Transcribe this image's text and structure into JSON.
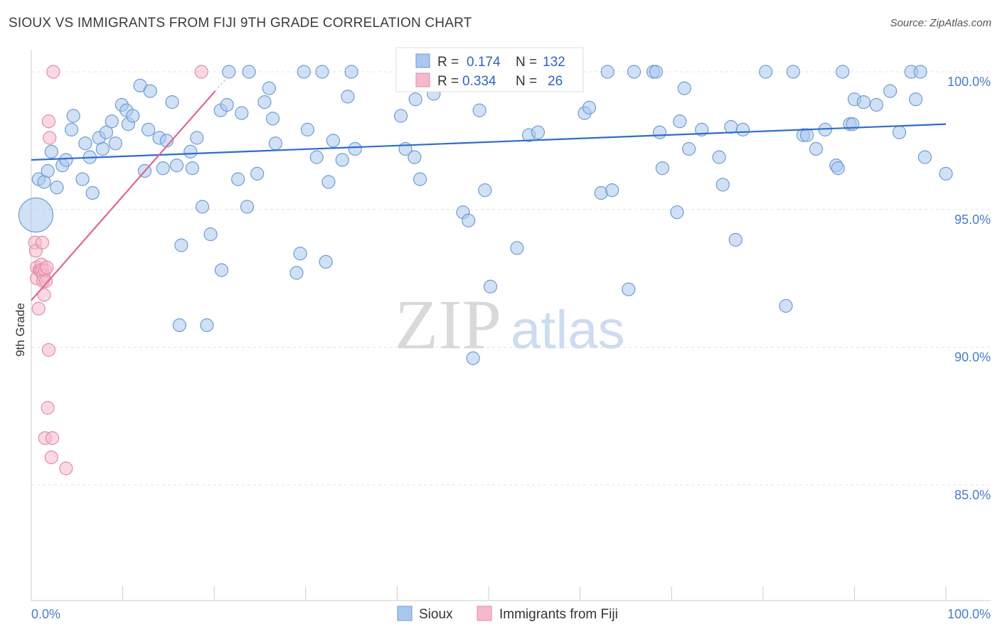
{
  "title": "SIOUX VS IMMIGRANTS FROM FIJI 9TH GRADE CORRELATION CHART",
  "source": "Source: ZipAtlas.com",
  "watermark": {
    "zip": "ZIP",
    "atlas": "atlas"
  },
  "colors": {
    "sioux_fill": "#a9c8ee",
    "sioux_stroke": "#6f9ad6",
    "sioux_line": "#2f6cc8",
    "fiji_fill": "#f6b9cb",
    "fiji_stroke": "#e58aa7",
    "fiji_line": "#e0668f",
    "tick_text": "#4a7cc9",
    "grid": "#dfe3ea"
  },
  "legend": {
    "rows": [
      {
        "r_label": "R =",
        "r_value": "0.174",
        "n_label": "N =",
        "n_value": "132"
      },
      {
        "r_label": "R =",
        "r_value": "0.334",
        "n_label": "N =",
        "n_value": "26"
      }
    ]
  },
  "chart_data": {
    "type": "scatter",
    "title": "SIOUX VS IMMIGRANTS FROM FIJI 9TH GRADE CORRELATION CHART",
    "xlabel": "",
    "ylabel": "9th Grade",
    "xlim": [
      0,
      100
    ],
    "ylim": [
      80.8,
      100.8
    ],
    "x_tick_labels": [
      "0.0%",
      "100.0%"
    ],
    "y_ticks": [
      85,
      90,
      95,
      100
    ],
    "y_tick_labels": [
      "85.0%",
      "90.0%",
      "95.0%",
      "100.0%"
    ],
    "grid": true,
    "legend_position": "bottom",
    "series": [
      {
        "name": "Sioux",
        "trend": {
          "x": [
            0,
            100
          ],
          "y": [
            96.8,
            98.1
          ]
        },
        "points": [
          [
            0.5,
            94.8,
            24
          ],
          [
            0.8,
            96.1,
            9
          ],
          [
            1.4,
            96.0,
            9
          ],
          [
            1.8,
            96.4,
            9
          ],
          [
            2.2,
            97.1,
            9
          ],
          [
            2.8,
            95.8,
            9
          ],
          [
            3.4,
            96.6,
            9
          ],
          [
            3.8,
            96.8,
            9
          ],
          [
            4.4,
            97.9,
            9
          ],
          [
            4.6,
            98.4,
            9
          ],
          [
            5.6,
            96.1,
            9
          ],
          [
            5.9,
            97.4,
            9
          ],
          [
            6.4,
            96.9,
            9
          ],
          [
            6.7,
            95.6,
            9
          ],
          [
            7.4,
            97.6,
            9
          ],
          [
            7.8,
            97.2,
            9
          ],
          [
            8.2,
            97.8,
            9
          ],
          [
            8.8,
            98.2,
            9
          ],
          [
            9.2,
            97.4,
            9
          ],
          [
            9.9,
            98.8,
            9
          ],
          [
            10.4,
            98.6,
            9
          ],
          [
            10.6,
            98.1,
            9
          ],
          [
            11.1,
            98.4,
            9
          ],
          [
            11.9,
            99.5,
            9
          ],
          [
            12.4,
            96.4,
            9
          ],
          [
            12.8,
            97.9,
            9
          ],
          [
            13.0,
            99.3,
            9
          ],
          [
            14.0,
            97.6,
            9
          ],
          [
            14.4,
            96.5,
            9
          ],
          [
            14.8,
            97.5,
            9
          ],
          [
            15.4,
            98.9,
            9
          ],
          [
            15.9,
            96.6,
            9
          ],
          [
            16.4,
            93.7,
            9
          ],
          [
            16.2,
            90.8,
            9
          ],
          [
            17.4,
            97.1,
            9
          ],
          [
            17.6,
            96.5,
            9
          ],
          [
            18.1,
            97.6,
            9
          ],
          [
            18.7,
            95.1,
            9
          ],
          [
            19.2,
            90.8,
            9
          ],
          [
            19.6,
            94.1,
            9
          ],
          [
            20.7,
            98.6,
            9
          ],
          [
            20.8,
            92.8,
            9
          ],
          [
            21.4,
            98.8,
            9
          ],
          [
            21.6,
            100.0,
            9
          ],
          [
            22.6,
            96.1,
            9
          ],
          [
            23.0,
            98.5,
            9
          ],
          [
            23.6,
            95.1,
            9
          ],
          [
            23.8,
            100.0,
            9
          ],
          [
            24.7,
            96.3,
            9
          ],
          [
            25.5,
            98.9,
            9
          ],
          [
            26.0,
            99.4,
            9
          ],
          [
            26.4,
            98.3,
            9
          ],
          [
            26.7,
            97.4,
            9
          ],
          [
            29.0,
            92.7,
            9
          ],
          [
            29.4,
            93.4,
            9
          ],
          [
            29.8,
            100.0,
            9
          ],
          [
            30.2,
            97.9,
            9
          ],
          [
            31.2,
            96.9,
            9
          ],
          [
            31.8,
            100.0,
            9
          ],
          [
            32.2,
            93.1,
            9
          ],
          [
            32.5,
            96.0,
            9
          ],
          [
            33.0,
            97.5,
            9
          ],
          [
            34.0,
            96.8,
            9
          ],
          [
            34.6,
            99.1,
            9
          ],
          [
            35.0,
            100.0,
            9
          ],
          [
            35.4,
            97.2,
            9
          ],
          [
            40.4,
            98.4,
            9
          ],
          [
            40.9,
            97.2,
            9
          ],
          [
            41.9,
            96.9,
            9
          ],
          [
            42.5,
            96.1,
            9
          ],
          [
            43.9,
            100.0,
            9
          ],
          [
            47.2,
            94.9,
            9
          ],
          [
            47.8,
            94.6,
            9
          ],
          [
            48.3,
            89.6,
            9
          ],
          [
            49.0,
            98.6,
            9
          ],
          [
            49.6,
            95.7,
            9
          ],
          [
            50.2,
            92.2,
            9
          ],
          [
            51.5,
            100.0,
            9
          ],
          [
            53.1,
            93.6,
            9
          ],
          [
            54.4,
            97.7,
            9
          ],
          [
            55.4,
            97.8,
            9
          ],
          [
            56.6,
            100.0,
            9
          ],
          [
            60.5,
            98.5,
            9
          ],
          [
            61.0,
            98.7,
            9
          ],
          [
            62.3,
            95.6,
            9
          ],
          [
            63.0,
            100.0,
            9
          ],
          [
            63.5,
            95.7,
            9
          ],
          [
            65.9,
            100.0,
            9
          ],
          [
            65.3,
            92.1,
            9
          ],
          [
            68.0,
            100.0,
            9
          ],
          [
            68.3,
            100.0,
            9
          ],
          [
            68.7,
            97.8,
            9
          ],
          [
            69.0,
            96.5,
            9
          ],
          [
            70.6,
            94.9,
            9
          ],
          [
            70.9,
            98.2,
            9
          ],
          [
            71.4,
            99.4,
            9
          ],
          [
            71.9,
            97.2,
            9
          ],
          [
            73.3,
            97.9,
            9
          ],
          [
            75.2,
            96.9,
            9
          ],
          [
            75.6,
            95.9,
            9
          ],
          [
            76.5,
            98.0,
            9
          ],
          [
            77.0,
            93.9,
            9
          ],
          [
            77.8,
            97.9,
            9
          ],
          [
            80.3,
            100.0,
            9
          ],
          [
            82.5,
            91.5,
            9
          ],
          [
            83.3,
            100.0,
            9
          ],
          [
            84.4,
            97.7,
            9
          ],
          [
            84.8,
            97.7,
            9
          ],
          [
            85.8,
            97.2,
            9
          ],
          [
            86.8,
            97.9,
            9
          ],
          [
            88.0,
            96.6,
            9
          ],
          [
            88.2,
            96.5,
            9
          ],
          [
            88.7,
            100.0,
            9
          ],
          [
            89.5,
            98.1,
            9
          ],
          [
            89.8,
            98.1,
            9
          ],
          [
            90.0,
            99.0,
            9
          ],
          [
            91.0,
            98.9,
            9
          ],
          [
            92.4,
            98.8,
            9
          ],
          [
            93.9,
            99.3,
            9
          ],
          [
            94.9,
            97.8,
            9
          ],
          [
            96.2,
            100.0,
            9
          ],
          [
            96.7,
            99.0,
            9
          ],
          [
            97.2,
            100.0,
            9
          ],
          [
            97.7,
            96.9,
            9
          ],
          [
            100.0,
            96.3,
            9
          ],
          [
            42.0,
            99.0,
            9
          ],
          [
            44.0,
            99.2,
            9
          ],
          [
            50.8,
            100.0,
            9
          ]
        ]
      },
      {
        "name": "Immigrants from Fiji",
        "trend": {
          "x": [
            0,
            20.1
          ],
          "y": [
            91.7,
            99.3
          ]
        },
        "points": [
          [
            0.4,
            93.8,
            9
          ],
          [
            0.5,
            93.5,
            9
          ],
          [
            0.6,
            92.9,
            9
          ],
          [
            0.6,
            92.5,
            9
          ],
          [
            0.8,
            91.4,
            9
          ],
          [
            0.9,
            92.8,
            9
          ],
          [
            1.0,
            92.8,
            9
          ],
          [
            1.1,
            93.0,
            9
          ],
          [
            1.2,
            93.8,
            9
          ],
          [
            1.2,
            92.8,
            9
          ],
          [
            1.3,
            92.6,
            9
          ],
          [
            1.3,
            92.4,
            9
          ],
          [
            1.4,
            91.9,
            9
          ],
          [
            1.5,
            92.8,
            9
          ],
          [
            1.6,
            92.4,
            9
          ],
          [
            1.7,
            92.9,
            9
          ],
          [
            1.8,
            87.8,
            9
          ],
          [
            1.9,
            89.9,
            9
          ],
          [
            1.9,
            98.2,
            9
          ],
          [
            2.0,
            97.6,
            9
          ],
          [
            2.2,
            86.0,
            9
          ],
          [
            1.5,
            86.7,
            9
          ],
          [
            2.3,
            86.7,
            9
          ],
          [
            2.4,
            100.0,
            9
          ],
          [
            3.8,
            85.6,
            9
          ],
          [
            18.6,
            100.0,
            9
          ]
        ]
      }
    ]
  },
  "bottom_legend": [
    {
      "label": "Sioux"
    },
    {
      "label": "Immigrants from Fiji"
    }
  ]
}
